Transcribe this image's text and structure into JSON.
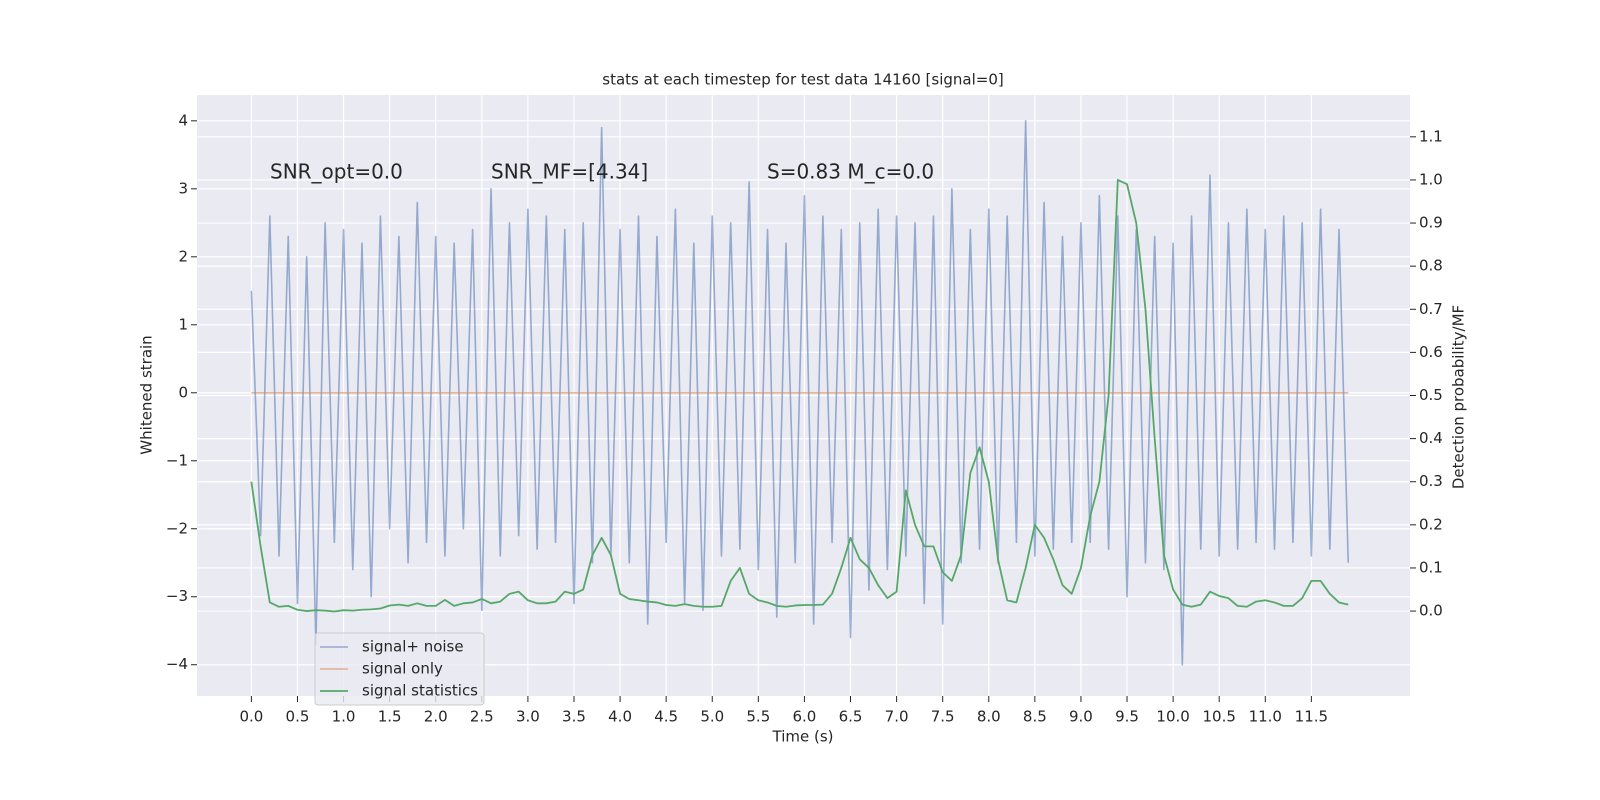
{
  "chart_data": {
    "type": "line",
    "title": "stats at each timestep for test data 14160 [signal=0]",
    "xlabel": "Time (s)",
    "ylabel": "Whitened strain",
    "y2label": "Detection probability/MF",
    "annotations": [
      "SNR_opt=0.0",
      "SNR_MF=[4.34]",
      "S=0.83   M_c=0.0"
    ],
    "grid": true,
    "legend": "lower left",
    "xlim": [
      -0.59,
      12.57
    ],
    "ylim": [
      -4.46,
      4.38
    ],
    "y2lim": [
      -0.197,
      1.197
    ],
    "xticks": [
      {
        "value": 0,
        "label": "0.0"
      },
      {
        "value": 0.5,
        "label": "0.5"
      },
      {
        "value": 1,
        "label": "1.0"
      },
      {
        "value": 1.5,
        "label": "1.5"
      },
      {
        "value": 2,
        "label": "2.0"
      },
      {
        "value": 2.5,
        "label": "2.5"
      },
      {
        "value": 3,
        "label": "3.0"
      },
      {
        "value": 3.5,
        "label": "3.5"
      },
      {
        "value": 4,
        "label": "4.0"
      },
      {
        "value": 4.5,
        "label": "4.5"
      },
      {
        "value": 5,
        "label": "5.0"
      },
      {
        "value": 5.5,
        "label": "5.5"
      },
      {
        "value": 6,
        "label": "6.0"
      },
      {
        "value": 6.5,
        "label": "6.5"
      },
      {
        "value": 7,
        "label": "7.0"
      },
      {
        "value": 7.5,
        "label": "7.5"
      },
      {
        "value": 8,
        "label": "8.0"
      },
      {
        "value": 8.5,
        "label": "8.5"
      },
      {
        "value": 9,
        "label": "9.0"
      },
      {
        "value": 9.5,
        "label": "9.5"
      },
      {
        "value": 10,
        "label": "10.0"
      },
      {
        "value": 10.5,
        "label": "10.5"
      },
      {
        "value": 11,
        "label": "11.0"
      },
      {
        "value": 11.5,
        "label": "11.5"
      }
    ],
    "yticks": [
      {
        "value": -4,
        "label": "−4"
      },
      {
        "value": -3,
        "label": "−3"
      },
      {
        "value": -2,
        "label": "−2"
      },
      {
        "value": -1,
        "label": "−1"
      },
      0,
      1,
      2,
      3,
      4
    ],
    "y2ticks": [
      {
        "value": 0,
        "label": "0.0"
      },
      {
        "value": 0.1,
        "label": "0.1"
      },
      {
        "value": 0.2,
        "label": "0.2"
      },
      {
        "value": 0.3,
        "label": "0.3"
      },
      {
        "value": 0.4,
        "label": "0.4"
      },
      {
        "value": 0.5,
        "label": "0.5"
      },
      {
        "value": 0.6,
        "label": "0.6"
      },
      {
        "value": 0.7,
        "label": "0.7"
      },
      {
        "value": 0.8,
        "label": "0.8"
      },
      {
        "value": 0.9,
        "label": "0.9"
      },
      {
        "value": 1.0,
        "label": "1.0"
      },
      {
        "value": 1.1,
        "label": "1.1"
      }
    ],
    "x": [
      0,
      0.1,
      0.2,
      0.3,
      0.4,
      0.5,
      0.6,
      0.7,
      0.8,
      0.9,
      1,
      1.1,
      1.2,
      1.3,
      1.4,
      1.5,
      1.6,
      1.7,
      1.8,
      1.9,
      2,
      2.1,
      2.2,
      2.3,
      2.4,
      2.5,
      2.6,
      2.7,
      2.8,
      2.9,
      3,
      3.1,
      3.2,
      3.3,
      3.4,
      3.5,
      3.6,
      3.7,
      3.8,
      3.9,
      4,
      4.1,
      4.2,
      4.3,
      4.4,
      4.5,
      4.6,
      4.7,
      4.8,
      4.9,
      5,
      5.1,
      5.2,
      5.3,
      5.4,
      5.5,
      5.6,
      5.7,
      5.8,
      5.9,
      6,
      6.1,
      6.2,
      6.3,
      6.4,
      6.5,
      6.6,
      6.7,
      6.8,
      6.9,
      7,
      7.1,
      7.2,
      7.3,
      7.4,
      7.5,
      7.6,
      7.7,
      7.8,
      7.9,
      8,
      8.1,
      8.2,
      8.3,
      8.4,
      8.5,
      8.6,
      8.7,
      8.8,
      8.9,
      9,
      9.1,
      9.2,
      9.3,
      9.4,
      9.5,
      9.6,
      9.7,
      9.8,
      9.9,
      10,
      10.1,
      10.2,
      10.3,
      10.4,
      10.5,
      10.6,
      10.7,
      10.8,
      10.9,
      11,
      11.1,
      11.2,
      11.3,
      11.4,
      11.5,
      11.6,
      11.7,
      11.8,
      11.9
    ],
    "series": [
      {
        "name": "signal+ noise",
        "color": "#4c72b0",
        "axis": "y",
        "values": [
          1.5,
          -2.1,
          2.6,
          -2.4,
          2.3,
          -3.1,
          2.0,
          -3.7,
          2.5,
          -2.2,
          2.4,
          -2.6,
          2.2,
          -3.0,
          2.6,
          -2.0,
          2.3,
          -2.5,
          2.8,
          -2.2,
          2.3,
          -2.4,
          2.2,
          -2.0,
          2.4,
          -3.2,
          3.0,
          -2.4,
          2.5,
          -2.1,
          2.7,
          -2.3,
          2.6,
          -2.2,
          2.4,
          -3.1,
          2.5,
          -2.5,
          3.9,
          -2.4,
          2.4,
          -2.5,
          2.6,
          -3.4,
          2.3,
          -2.2,
          2.7,
          -3.1,
          2.2,
          -3.2,
          2.6,
          -2.4,
          2.5,
          -2.3,
          3.1,
          -2.6,
          2.4,
          -3.3,
          2.2,
          -2.5,
          2.9,
          -3.4,
          2.6,
          -2.2,
          2.4,
          -3.6,
          2.5,
          -2.9,
          2.7,
          -2.6,
          2.6,
          -2.4,
          2.5,
          -3.1,
          2.6,
          -3.4,
          3.0,
          -2.5,
          2.4,
          -2.3,
          2.7,
          -2.5,
          2.6,
          -2.2,
          4.0,
          -2.4,
          2.8,
          -2.3,
          2.3,
          -2.2,
          2.5,
          -2.2,
          2.9,
          -2.3,
          2.6,
          -3.0,
          2.4,
          -2.5,
          2.3,
          -2.6,
          2.2,
          -4.0,
          2.6,
          -2.3,
          3.2,
          -2.4,
          2.5,
          -2.3,
          2.7,
          -2.2,
          2.4,
          -2.3,
          2.6,
          -2.2,
          2.5,
          -2.4,
          2.7,
          -2.3,
          2.4,
          -2.5
        ]
      },
      {
        "name": "signal only",
        "color": "#dd8452",
        "axis": "y",
        "values": [
          0,
          0,
          0,
          0,
          0,
          0,
          0,
          0,
          0,
          0,
          0,
          0,
          0,
          0,
          0,
          0,
          0,
          0,
          0,
          0,
          0,
          0,
          0,
          0,
          0,
          0,
          0,
          0,
          0,
          0,
          0,
          0,
          0,
          0,
          0,
          0,
          0,
          0,
          0,
          0,
          0,
          0,
          0,
          0,
          0,
          0,
          0,
          0,
          0,
          0,
          0,
          0,
          0,
          0,
          0,
          0,
          0,
          0,
          0,
          0,
          0,
          0,
          0,
          0,
          0,
          0,
          0,
          0,
          0,
          0,
          0,
          0,
          0,
          0,
          0,
          0,
          0,
          0,
          0,
          0,
          0,
          0,
          0,
          0,
          0,
          0,
          0,
          0,
          0,
          0,
          0,
          0,
          0,
          0,
          0,
          0,
          0,
          0,
          0,
          0,
          0,
          0,
          0,
          0,
          0,
          0,
          0,
          0,
          0,
          0,
          0,
          0,
          0,
          0,
          0,
          0,
          0,
          0,
          0,
          0
        ]
      },
      {
        "name": "signal statistics",
        "color": "#55a868",
        "axis": "y2",
        "values": [
          0.3,
          0.15,
          0.02,
          0.01,
          0.012,
          0.003,
          0.0,
          0.002,
          0.001,
          -0.001,
          0.002,
          0.001,
          0.003,
          0.004,
          0.006,
          0.013,
          0.015,
          0.012,
          0.018,
          0.012,
          0.012,
          0.026,
          0.012,
          0.018,
          0.02,
          0.028,
          0.018,
          0.022,
          0.04,
          0.045,
          0.025,
          0.018,
          0.018,
          0.022,
          0.045,
          0.04,
          0.05,
          0.13,
          0.17,
          0.13,
          0.04,
          0.028,
          0.025,
          0.022,
          0.02,
          0.014,
          0.012,
          0.016,
          0.012,
          0.01,
          0.01,
          0.012,
          0.07,
          0.1,
          0.04,
          0.025,
          0.02,
          0.012,
          0.01,
          0.013,
          0.014,
          0.014,
          0.015,
          0.04,
          0.1,
          0.17,
          0.12,
          0.1,
          0.06,
          0.03,
          0.045,
          0.28,
          0.2,
          0.15,
          0.15,
          0.09,
          0.07,
          0.13,
          0.32,
          0.38,
          0.3,
          0.12,
          0.025,
          0.02,
          0.1,
          0.2,
          0.17,
          0.12,
          0.06,
          0.04,
          0.1,
          0.22,
          0.3,
          0.5,
          1.0,
          0.99,
          0.9,
          0.7,
          0.4,
          0.13,
          0.05,
          0.015,
          0.01,
          0.015,
          0.045,
          0.035,
          0.03,
          0.012,
          0.01,
          0.022,
          0.025,
          0.02,
          0.012,
          0.012,
          0.03,
          0.07,
          0.07,
          0.04,
          0.02,
          0.015
        ]
      }
    ]
  }
}
